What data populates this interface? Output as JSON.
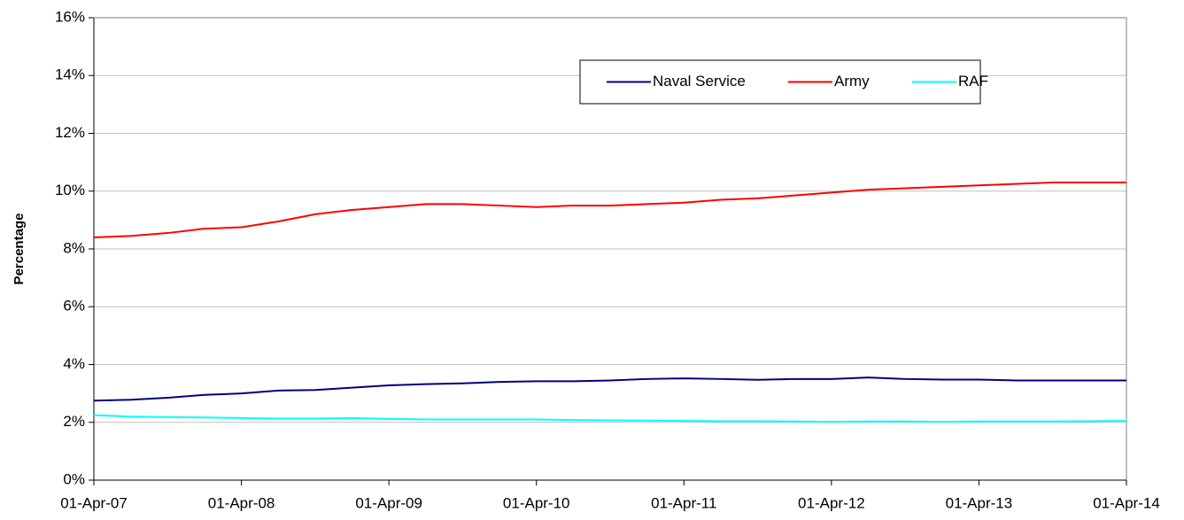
{
  "chart_data": {
    "type": "line",
    "y_label": "Percentage",
    "categories": [
      "01-Apr-07",
      null,
      null,
      null,
      "01-Apr-08",
      null,
      null,
      null,
      "01-Apr-09",
      null,
      null,
      null,
      "01-Apr-10",
      null,
      null,
      null,
      "01-Apr-11",
      null,
      null,
      null,
      "01-Apr-12",
      null,
      null,
      null,
      "01-Apr-13",
      null,
      null,
      null,
      "01-Apr-14"
    ],
    "series": [
      {
        "name": "Naval Service",
        "color": "#000080",
        "values": [
          2.75,
          2.78,
          2.85,
          2.95,
          3.0,
          3.1,
          3.12,
          3.2,
          3.28,
          3.32,
          3.35,
          3.4,
          3.42,
          3.42,
          3.45,
          3.5,
          3.52,
          3.5,
          3.47,
          3.5,
          3.5,
          3.55,
          3.5,
          3.48,
          3.48,
          3.45,
          3.45,
          3.45,
          3.45
        ]
      },
      {
        "name": "Army",
        "color": "#ff0000",
        "values": [
          8.4,
          8.45,
          8.55,
          8.7,
          8.75,
          8.95,
          9.2,
          9.35,
          9.45,
          9.55,
          9.55,
          9.5,
          9.45,
          9.5,
          9.5,
          9.55,
          9.6,
          9.7,
          9.75,
          9.85,
          9.95,
          10.05,
          10.1,
          10.15,
          10.2,
          10.25,
          10.3,
          10.3,
          10.3
        ]
      },
      {
        "name": "RAF",
        "color": "#00ffff",
        "values": [
          2.25,
          2.2,
          2.18,
          2.17,
          2.15,
          2.13,
          2.13,
          2.15,
          2.12,
          2.1,
          2.1,
          2.1,
          2.1,
          2.08,
          2.07,
          2.06,
          2.05,
          2.04,
          2.04,
          2.03,
          2.02,
          2.03,
          2.03,
          2.02,
          2.03,
          2.03,
          2.03,
          2.04,
          2.05
        ]
      }
    ],
    "ylim": [
      0,
      16
    ],
    "yticks": [
      {
        "value": 0,
        "label": "0%"
      },
      {
        "value": 2,
        "label": "2%"
      },
      {
        "value": 4,
        "label": "4%"
      },
      {
        "value": 6,
        "label": "6%"
      },
      {
        "value": 8,
        "label": "8%"
      },
      {
        "value": 10,
        "label": "10%"
      },
      {
        "value": 12,
        "label": "12%"
      },
      {
        "value": 14,
        "label": "14%"
      },
      {
        "value": 16,
        "label": "16%"
      }
    ],
    "grid": true,
    "legend": "top-right"
  }
}
